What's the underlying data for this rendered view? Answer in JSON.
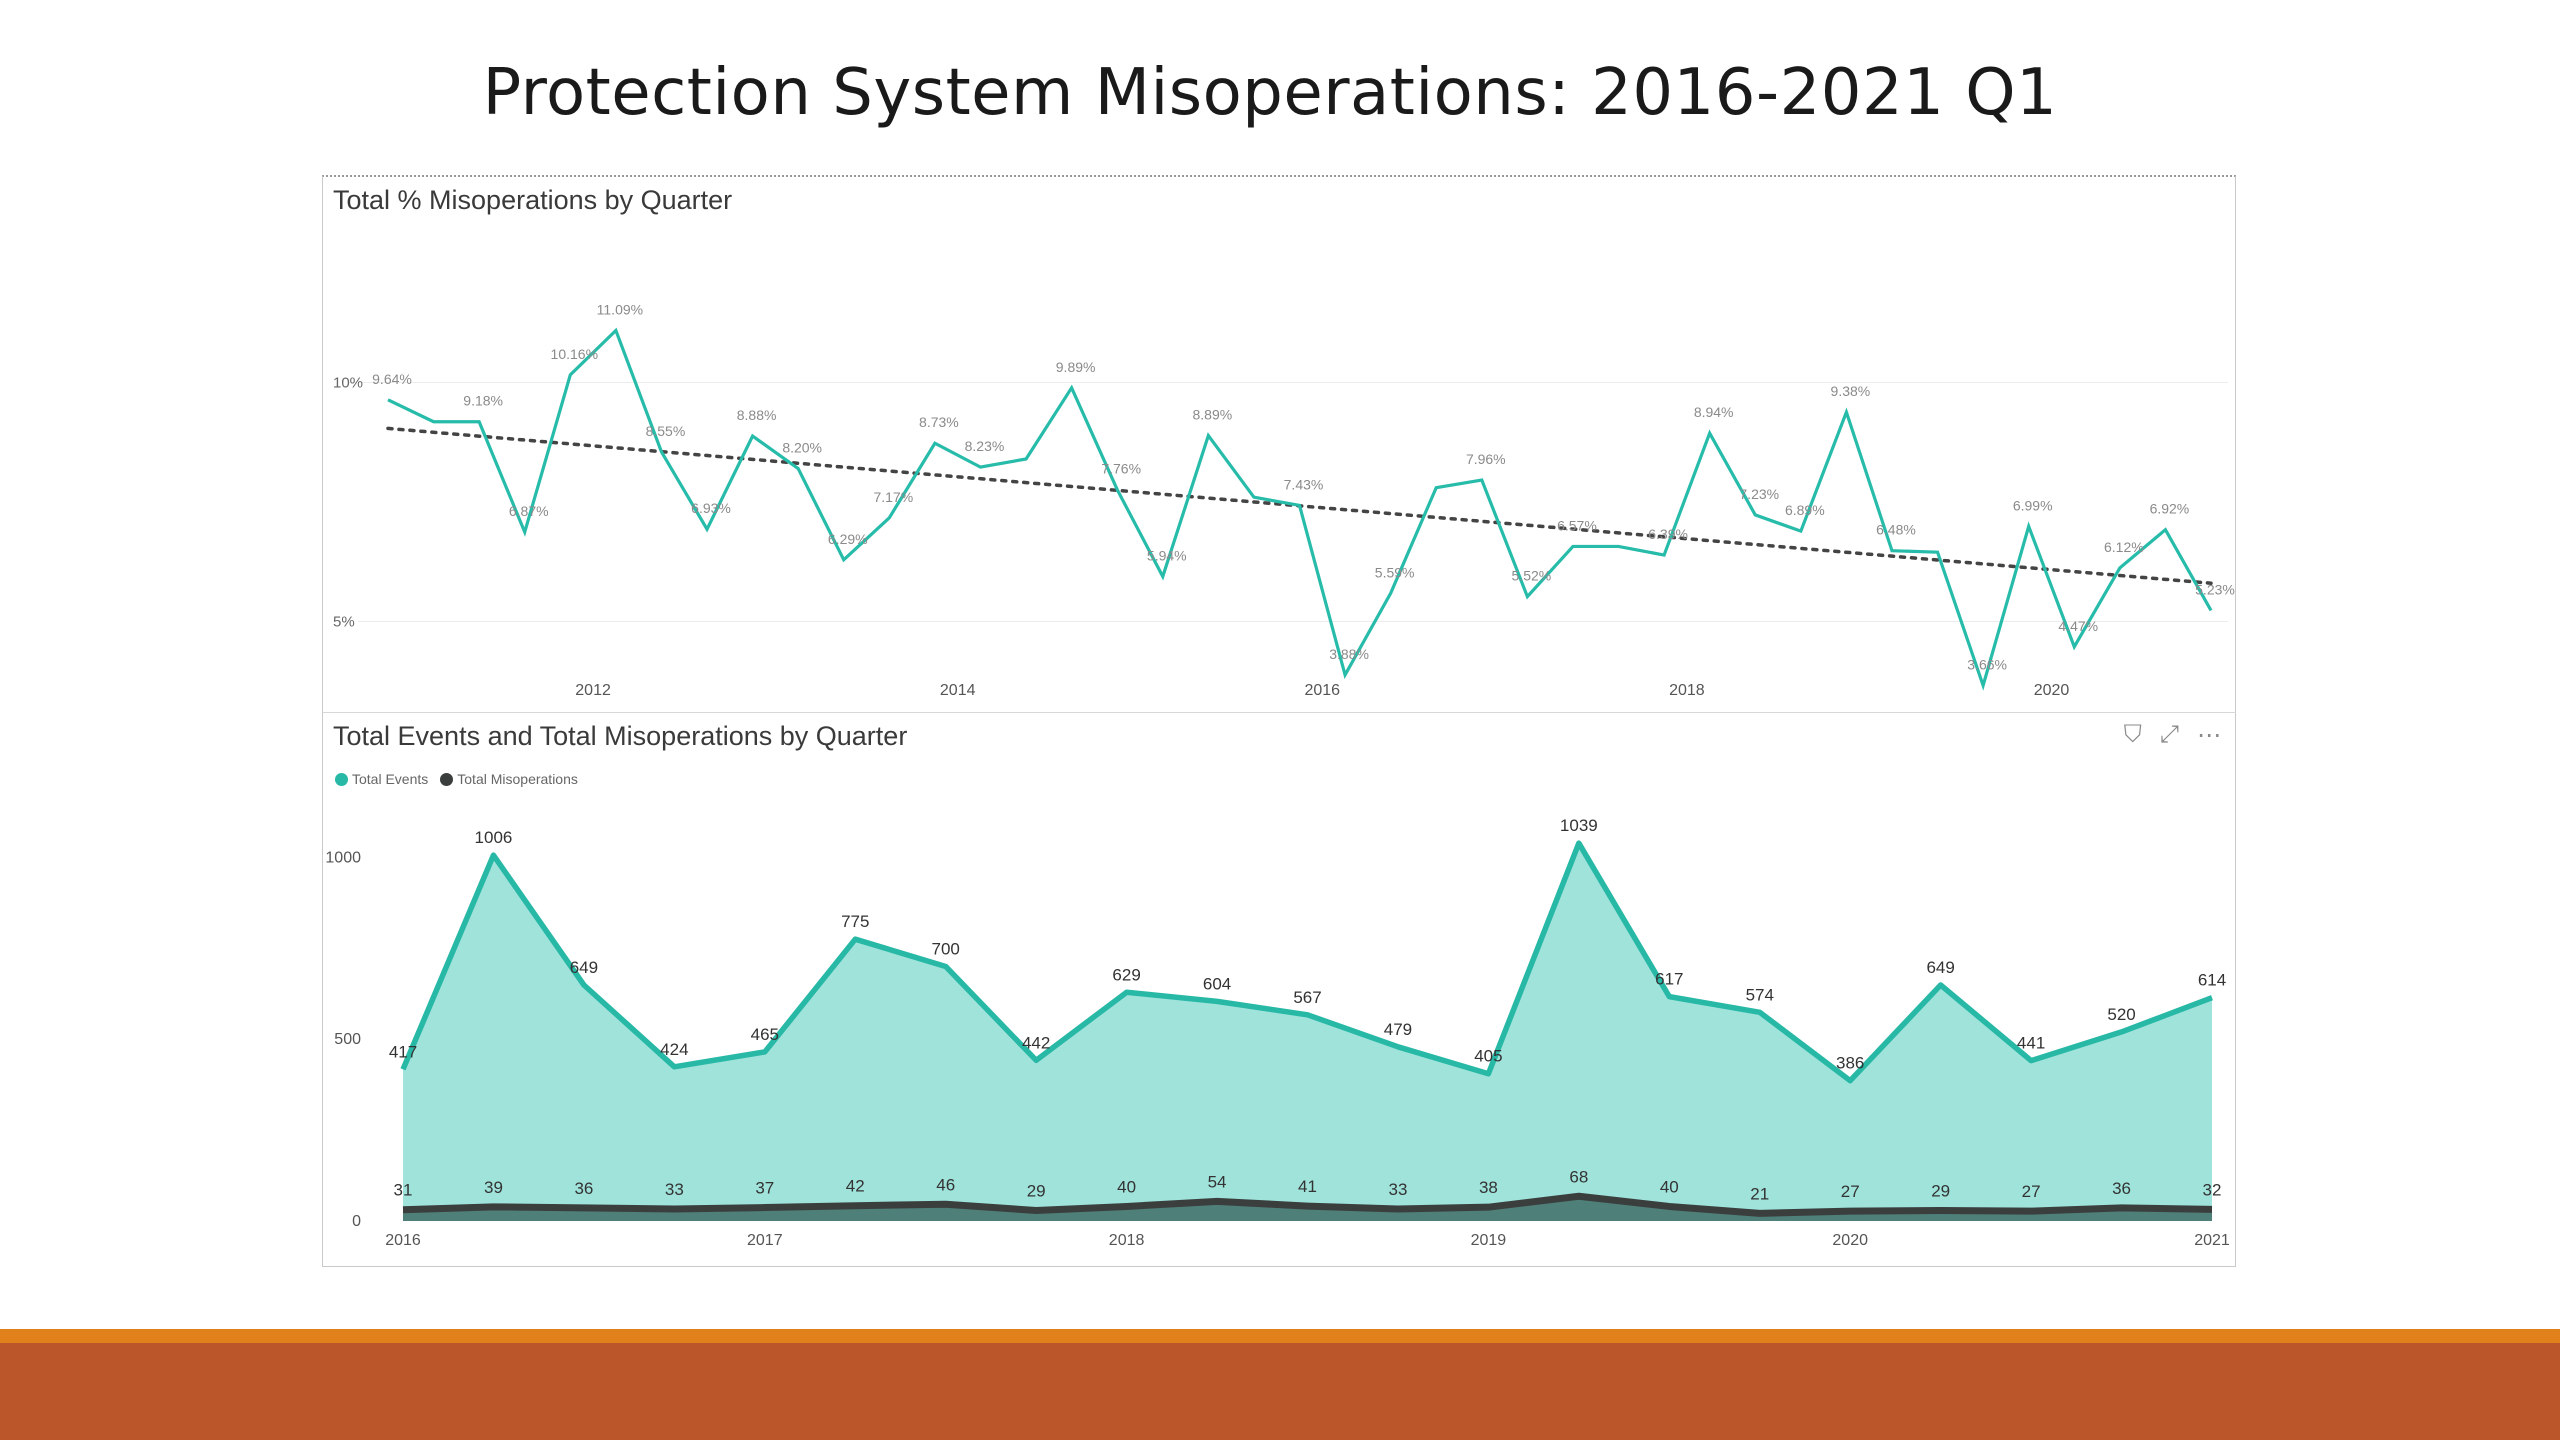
{
  "slide": {
    "title": "Protection System Misoperations:  2016-2021 Q1",
    "accent_colors": {
      "light": "#e0811c",
      "main": "#bb552a"
    }
  },
  "toolbar": {
    "filter_icon": "filter-icon",
    "focus_icon": "focus-mode-icon",
    "more_icon": "more-options-icon",
    "filter_glyph": "⛉",
    "focus_glyph": "⤢",
    "more_glyph": "⋯"
  },
  "chart_data": [
    {
      "type": "line",
      "title": "Total % Misoperations by Quarter",
      "color": "#27bcaa",
      "trendline": true,
      "trend_start": 9.04,
      "trend_end": 5.8,
      "x_ticks": [
        "2012",
        "2014",
        "2016",
        "2018",
        "2020"
      ],
      "y_ticks": [
        "5%",
        "10%"
      ],
      "ylim": [
        3,
        12
      ],
      "grid": true,
      "values": [
        9.64,
        9.18,
        9.18,
        6.87,
        10.16,
        11.09,
        8.55,
        6.93,
        8.88,
        8.2,
        6.29,
        7.17,
        8.73,
        8.23,
        8.4,
        9.89,
        7.76,
        5.94,
        8.89,
        7.6,
        7.43,
        3.88,
        5.59,
        7.8,
        7.96,
        5.52,
        6.57,
        6.57,
        6.39,
        8.94,
        7.23,
        6.89,
        9.38,
        6.48,
        6.45,
        3.66,
        6.99,
        4.47,
        6.12,
        6.92,
        5.23
      ],
      "labels": [
        "9.64%",
        "",
        "9.18%",
        "6.87%",
        "10.16%",
        "11.09%",
        "8.55%",
        "6.93%",
        "8.88%",
        "8.20%",
        "6.29%",
        "7.17%",
        "8.73%",
        "8.23%",
        "",
        "9.89%",
        "7.76%",
        "5.94%",
        "8.89%",
        "",
        "7.43%",
        "3.88%",
        "5.59%",
        "",
        "7.96%",
        "5.52%",
        "6.57%",
        "",
        "6.39%",
        "8.94%",
        "7.23%",
        "6.89%",
        "9.38%",
        "6.48%",
        "",
        "3.66%",
        "6.99%",
        "4.47%",
        "6.12%",
        "6.92%",
        "5.23%"
      ]
    },
    {
      "type": "area",
      "title": "Total Events and Total Misoperations by Quarter",
      "legend": "top-left",
      "x_ticks": [
        "2016",
        "2017",
        "2018",
        "2019",
        "2020",
        "2021"
      ],
      "y_ticks": [
        "0",
        "500",
        "1000"
      ],
      "ylim": [
        0,
        1100
      ],
      "series": [
        {
          "name": "Total Events",
          "color": "#27b8a6",
          "fill": "#9fe3db",
          "values": [
            417,
            1006,
            649,
            424,
            465,
            775,
            700,
            442,
            629,
            604,
            567,
            479,
            405,
            1039,
            617,
            574,
            386,
            649,
            441,
            520,
            614
          ]
        },
        {
          "name": "Total Misoperations",
          "color": "#3a3f3e",
          "fill": "#4f7f79",
          "values": [
            31,
            39,
            36,
            33,
            37,
            42,
            46,
            29,
            40,
            54,
            41,
            33,
            38,
            68,
            40,
            21,
            27,
            29,
            27,
            36,
            32
          ]
        }
      ]
    }
  ]
}
